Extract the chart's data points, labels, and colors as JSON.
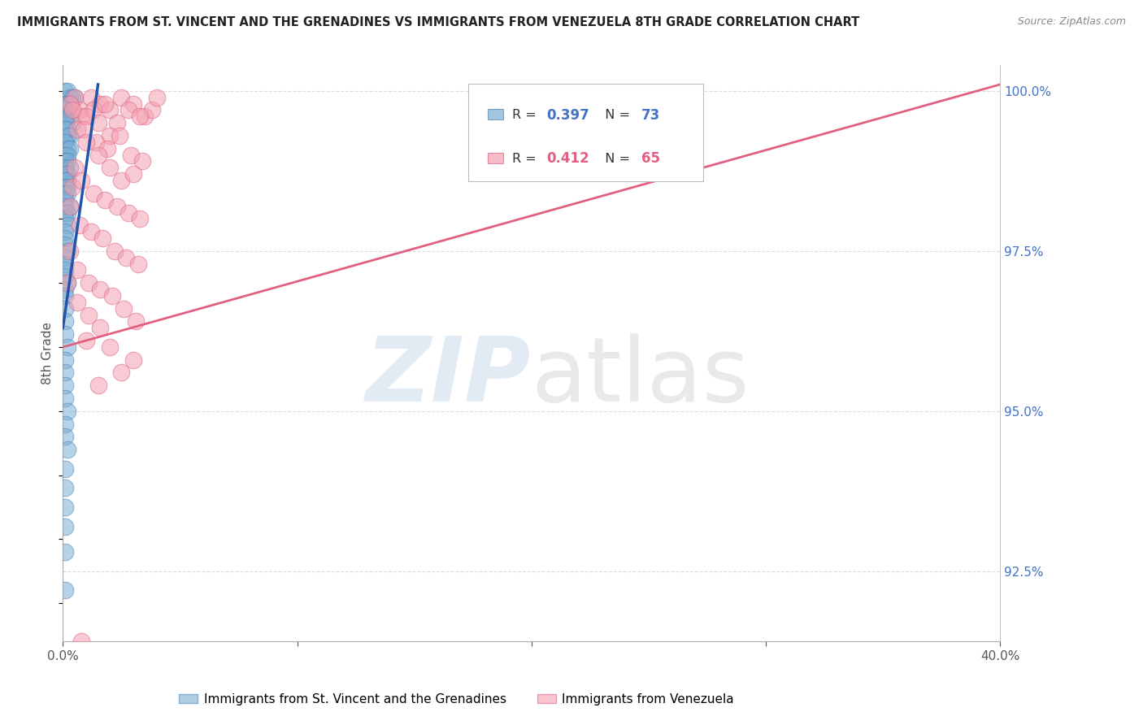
{
  "title": "IMMIGRANTS FROM ST. VINCENT AND THE GRENADINES VS IMMIGRANTS FROM VENEZUELA 8TH GRADE CORRELATION CHART",
  "source": "Source: ZipAtlas.com",
  "ylabel": "8th Grade",
  "x_min": 0.0,
  "x_max": 0.4,
  "y_min": 0.914,
  "y_max": 1.004,
  "y_ticks_right": [
    0.925,
    0.95,
    0.975,
    1.0
  ],
  "color_blue": "#7BAFD4",
  "color_pink": "#F4A0B0",
  "color_blue_line": "#2255AA",
  "color_pink_line": "#E06080",
  "legend_r_blue": "0.397",
  "legend_n_blue": "73",
  "legend_r_pink": "0.412",
  "legend_n_pink": "65",
  "label_blue": "Immigrants from St. Vincent and the Grenadines",
  "label_pink": "Immigrants from Venezuela",
  "background_color": "#FFFFFF",
  "grid_color": "#DDDDDD",
  "blue_scatter_x": [
    0.001,
    0.002,
    0.003,
    0.004,
    0.005,
    0.001,
    0.002,
    0.003,
    0.001,
    0.002,
    0.001,
    0.002,
    0.003,
    0.004,
    0.001,
    0.002,
    0.001,
    0.003,
    0.002,
    0.001,
    0.001,
    0.002,
    0.003,
    0.001,
    0.002,
    0.001,
    0.002,
    0.001,
    0.003,
    0.002,
    0.001,
    0.002,
    0.001,
    0.001,
    0.002,
    0.001,
    0.002,
    0.001,
    0.003,
    0.001,
    0.001,
    0.002,
    0.001,
    0.002,
    0.001,
    0.001,
    0.001,
    0.002,
    0.001,
    0.001,
    0.001,
    0.001,
    0.002,
    0.001,
    0.001,
    0.001,
    0.001,
    0.001,
    0.002,
    0.001,
    0.001,
    0.001,
    0.001,
    0.002,
    0.001,
    0.001,
    0.002,
    0.001,
    0.001,
    0.001,
    0.001,
    0.001,
    0.001
  ],
  "blue_scatter_y": [
    1.0,
    1.0,
    0.999,
    0.999,
    0.999,
    0.998,
    0.998,
    0.998,
    0.997,
    0.997,
    0.997,
    0.996,
    0.996,
    0.995,
    0.995,
    0.994,
    0.994,
    0.993,
    0.993,
    0.992,
    0.992,
    0.991,
    0.991,
    0.99,
    0.99,
    0.989,
    0.989,
    0.988,
    0.988,
    0.987,
    0.987,
    0.986,
    0.986,
    0.985,
    0.985,
    0.984,
    0.984,
    0.983,
    0.982,
    0.982,
    0.981,
    0.981,
    0.98,
    0.979,
    0.978,
    0.977,
    0.976,
    0.975,
    0.974,
    0.973,
    0.972,
    0.971,
    0.97,
    0.969,
    0.968,
    0.966,
    0.964,
    0.962,
    0.96,
    0.958,
    0.956,
    0.954,
    0.952,
    0.95,
    0.948,
    0.946,
    0.944,
    0.941,
    0.938,
    0.935,
    0.932,
    0.928,
    0.922
  ],
  "pink_scatter_x": [
    0.005,
    0.007,
    0.012,
    0.016,
    0.02,
    0.025,
    0.03,
    0.035,
    0.038,
    0.04,
    0.003,
    0.008,
    0.013,
    0.018,
    0.023,
    0.028,
    0.033,
    0.006,
    0.01,
    0.015,
    0.02,
    0.004,
    0.009,
    0.014,
    0.019,
    0.024,
    0.029,
    0.034,
    0.005,
    0.01,
    0.015,
    0.02,
    0.025,
    0.03,
    0.004,
    0.008,
    0.013,
    0.018,
    0.023,
    0.028,
    0.033,
    0.003,
    0.007,
    0.012,
    0.017,
    0.022,
    0.027,
    0.032,
    0.003,
    0.006,
    0.011,
    0.016,
    0.021,
    0.026,
    0.031,
    0.002,
    0.006,
    0.011,
    0.016,
    0.01,
    0.02,
    0.03,
    0.025,
    0.015,
    0.008
  ],
  "pink_scatter_y": [
    0.999,
    0.997,
    0.999,
    0.998,
    0.997,
    0.999,
    0.998,
    0.996,
    0.997,
    0.999,
    0.998,
    0.996,
    0.997,
    0.998,
    0.995,
    0.997,
    0.996,
    0.994,
    0.996,
    0.995,
    0.993,
    0.997,
    0.994,
    0.992,
    0.991,
    0.993,
    0.99,
    0.989,
    0.988,
    0.992,
    0.99,
    0.988,
    0.986,
    0.987,
    0.985,
    0.986,
    0.984,
    0.983,
    0.982,
    0.981,
    0.98,
    0.982,
    0.979,
    0.978,
    0.977,
    0.975,
    0.974,
    0.973,
    0.975,
    0.972,
    0.97,
    0.969,
    0.968,
    0.966,
    0.964,
    0.97,
    0.967,
    0.965,
    0.963,
    0.961,
    0.96,
    0.958,
    0.956,
    0.954,
    0.914
  ],
  "blue_line_x": [
    0.0,
    0.015
  ],
  "blue_line_y": [
    0.963,
    1.001
  ],
  "pink_line_x": [
    0.0,
    0.4
  ],
  "pink_line_y": [
    0.96,
    1.001
  ]
}
